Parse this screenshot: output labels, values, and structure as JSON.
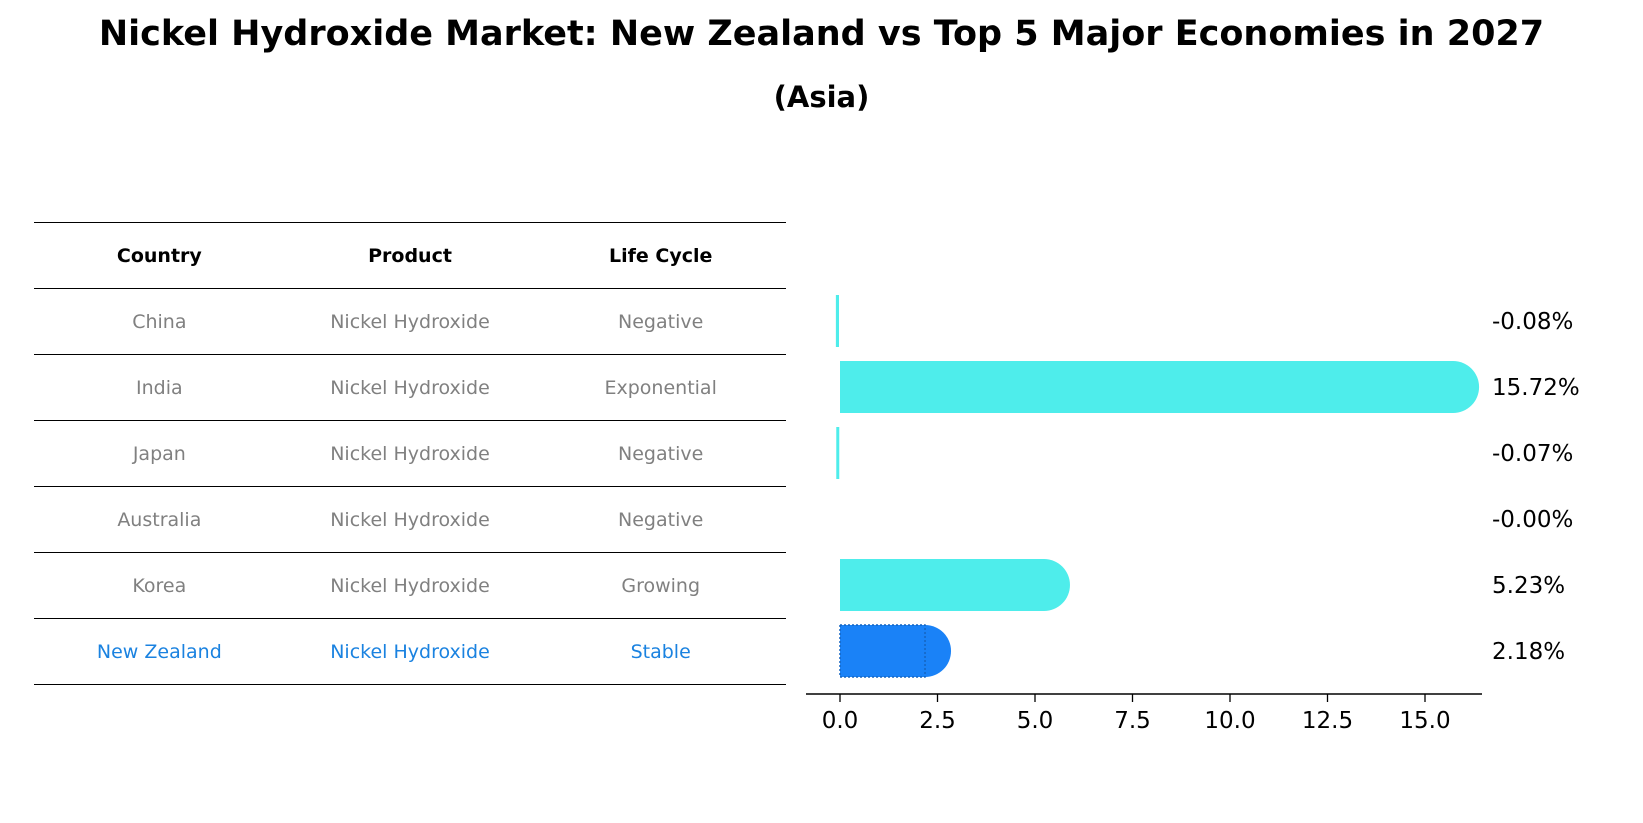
{
  "title": "Nickel Hydroxide Market: New Zealand vs Top 5 Major Economies in 2027",
  "subtitle": "(Asia)",
  "table": {
    "headers": [
      "Country",
      "Product",
      "Life Cycle"
    ],
    "rows": [
      [
        "China",
        "Nickel Hydroxide",
        "Negative"
      ],
      [
        "India",
        "Nickel Hydroxide",
        "Exponential"
      ],
      [
        "Japan",
        "Nickel Hydroxide",
        "Negative"
      ],
      [
        "Australia",
        "Nickel Hydroxide",
        "Negative"
      ],
      [
        "Korea",
        "Nickel Hydroxide",
        "Growing"
      ],
      [
        "New Zealand",
        "Nickel Hydroxide",
        "Stable"
      ]
    ]
  },
  "colors": {
    "bar": "#4EEDEB",
    "highlight": "#1A82F7",
    "highlight_text": "#1A82E0",
    "row_text": "#808080"
  },
  "chart_data": {
    "type": "bar",
    "orientation": "horizontal",
    "categories": [
      "China",
      "India",
      "Japan",
      "Australia",
      "Korea",
      "New Zealand"
    ],
    "values": [
      -0.08,
      15.72,
      -0.07,
      -0.0,
      5.23,
      2.18
    ],
    "value_labels": [
      "-0.08%",
      "15.72%",
      "-0.07%",
      "-0.00%",
      "5.23%",
      "2.18%"
    ],
    "highlight_index": 5,
    "xticks": [
      0.0,
      2.5,
      5.0,
      7.5,
      10.0,
      12.5,
      15.0
    ],
    "xtick_labels": [
      "0.0",
      "2.5",
      "5.0",
      "7.5",
      "10.0",
      "12.5",
      "15.0"
    ],
    "xlim": [
      -0.9,
      16.5
    ],
    "title": "",
    "xlabel": "",
    "ylabel": ""
  }
}
